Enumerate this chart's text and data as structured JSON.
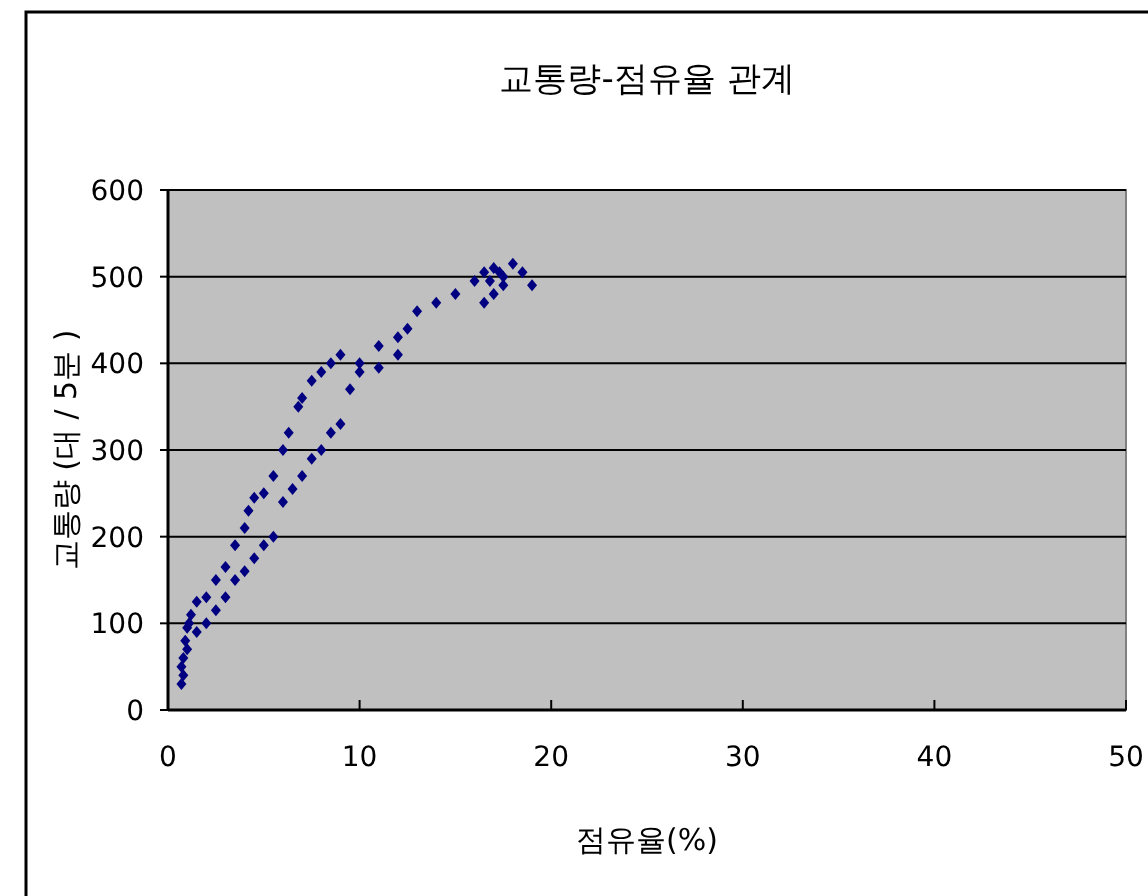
{
  "chart_data": {
    "type": "scatter",
    "title": "교통량-점유율 관계",
    "xlabel": "점유율(%)",
    "ylabel": "교통량 (대 / 5분 )",
    "xlim": [
      0,
      50
    ],
    "xticks": [
      0,
      10,
      20,
      30,
      40,
      50
    ],
    "ylim": [
      0,
      600
    ],
    "yticks": [
      0,
      100,
      200,
      300,
      400,
      500,
      600
    ],
    "grid": "y",
    "marker": "diamond",
    "series": [
      {
        "color": "#000080",
        "x": [
          0.7,
          0.7,
          0.8,
          0.8,
          0.9,
          1,
          1,
          1.1,
          1.2,
          1.5,
          2,
          2.5,
          3,
          3.5,
          4,
          4.2,
          4.5,
          5,
          5.5,
          6,
          6.3,
          6.8,
          7,
          7.5,
          8,
          8.5,
          9,
          10,
          11,
          12,
          13,
          14,
          15,
          16,
          16.5,
          16.5,
          16.8,
          17,
          17,
          17.3,
          17.5,
          17.5,
          18,
          18.5,
          19,
          1.5,
          2,
          2.5,
          3,
          3.5,
          4,
          4.5,
          5,
          5.5,
          6,
          6.5,
          7,
          7.5,
          8,
          8.5,
          9,
          9.5,
          10,
          11,
          12,
          12.5
        ],
        "values": [
          30,
          50,
          40,
          60,
          80,
          70,
          95,
          100,
          110,
          125,
          130,
          150,
          165,
          190,
          210,
          230,
          245,
          250,
          270,
          300,
          320,
          350,
          360,
          380,
          390,
          400,
          410,
          400,
          420,
          430,
          460,
          470,
          480,
          495,
          470,
          505,
          495,
          480,
          510,
          505,
          490,
          500,
          515,
          505,
          490,
          90,
          100,
          115,
          130,
          150,
          160,
          175,
          190,
          200,
          240,
          255,
          270,
          290,
          300,
          320,
          330,
          370,
          390,
          395,
          410,
          440
        ]
      }
    ]
  }
}
